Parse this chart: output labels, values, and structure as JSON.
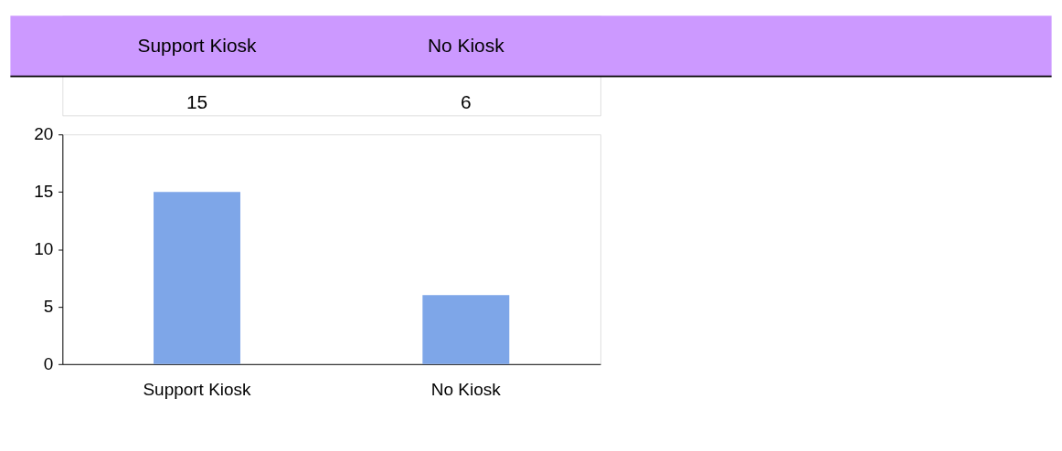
{
  "chart_data": {
    "type": "bar",
    "categories": [
      "Support Kiosk",
      "No Kiosk"
    ],
    "values": [
      15,
      6
    ],
    "color": "#7ea6e8",
    "ylim": [
      0,
      20
    ],
    "yticks": [
      0,
      5,
      10,
      15,
      20
    ],
    "grid": false,
    "data_labels": true
  }
}
